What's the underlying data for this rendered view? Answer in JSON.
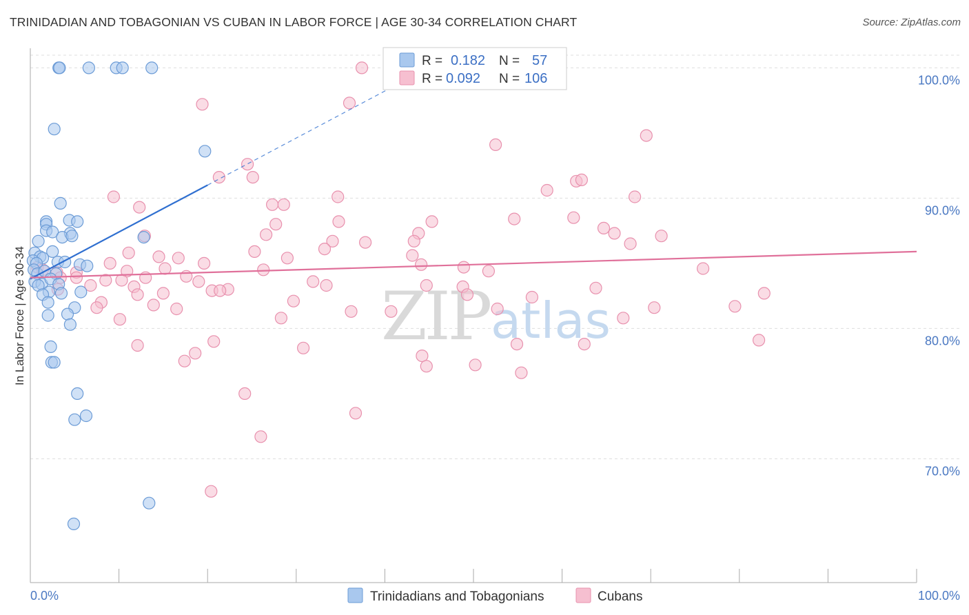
{
  "title": "TRINIDADIAN AND TOBAGONIAN VS CUBAN IN LABOR FORCE | AGE 30-34 CORRELATION CHART",
  "source": "Source: ZipAtlas.com",
  "watermark": {
    "zip": "ZIP",
    "atlas": "atlas"
  },
  "colors": {
    "blue_fill": "#a9c8ee",
    "blue_stroke": "#6b9bd6",
    "blue_line": "#2f6fd0",
    "pink_fill": "#f6bfd0",
    "pink_stroke": "#e890ad",
    "pink_line": "#e0709a",
    "grid": "#dddddd",
    "tick_text": "#4a78c2"
  },
  "legend": {
    "r_label": "R =",
    "n_label": "N =",
    "rows": [
      {
        "series": "blue",
        "r": "0.182",
        "n": "57"
      },
      {
        "series": "pink",
        "r": "0.092",
        "n": "106"
      }
    ]
  },
  "chart_data": {
    "type": "scatter",
    "title": "TRINIDADIAN AND TOBAGONIAN VS CUBAN IN LABOR FORCE | AGE 30-34 CORRELATION CHART",
    "xlabel": "",
    "ylabel": "In Labor Force | Age 30-34",
    "xlim": [
      0,
      100
    ],
    "ylim": [
      60.5,
      101.5
    ],
    "x_tick_labels": [
      "0.0%",
      "100.0%"
    ],
    "y_ticks": [
      {
        "value": 100,
        "label": "100.0%"
      },
      {
        "value": 90,
        "label": "90.0%"
      },
      {
        "value": 80,
        "label": "80.0%"
      },
      {
        "value": 70,
        "label": "70.0%"
      }
    ],
    "grid": true,
    "legend_position": "top-center",
    "series": [
      {
        "name": "Trinidadians and Tobagonians",
        "color": "blue",
        "trend": {
          "x": [
            0,
            20
          ],
          "y": [
            83.8,
            91.0
          ],
          "dashed_to": [
            43,
            99.3
          ]
        },
        "points": [
          [
            3.2,
            100.0
          ],
          [
            3.3,
            100.0
          ],
          [
            6.6,
            100.0
          ],
          [
            9.7,
            100.0
          ],
          [
            10.4,
            100.0
          ],
          [
            13.7,
            100.0
          ],
          [
            2.7,
            95.3
          ],
          [
            19.7,
            93.6
          ],
          [
            3.4,
            89.6
          ],
          [
            1.8,
            88.2
          ],
          [
            1.8,
            88.0
          ],
          [
            4.4,
            88.3
          ],
          [
            5.3,
            88.2
          ],
          [
            1.8,
            87.5
          ],
          [
            2.5,
            87.4
          ],
          [
            4.5,
            87.3
          ],
          [
            3.6,
            87.0
          ],
          [
            4.7,
            87.1
          ],
          [
            12.8,
            87.0
          ],
          [
            0.9,
            86.7
          ],
          [
            0.5,
            85.8
          ],
          [
            2.5,
            85.9
          ],
          [
            1.1,
            85.5
          ],
          [
            1.4,
            85.4
          ],
          [
            0.3,
            85.2
          ],
          [
            0.7,
            85.0
          ],
          [
            3.1,
            85.1
          ],
          [
            3.9,
            85.1
          ],
          [
            5.6,
            84.9
          ],
          [
            6.4,
            84.8
          ],
          [
            0.4,
            84.5
          ],
          [
            0.8,
            84.2
          ],
          [
            1.6,
            84.4
          ],
          [
            2.9,
            84.2
          ],
          [
            0.5,
            83.6
          ],
          [
            1.3,
            83.4
          ],
          [
            2.3,
            83.8
          ],
          [
            3.2,
            83.4
          ],
          [
            0.9,
            83.3
          ],
          [
            2.1,
            82.8
          ],
          [
            1.4,
            82.6
          ],
          [
            3.5,
            82.7
          ],
          [
            5.7,
            82.8
          ],
          [
            2.0,
            82.0
          ],
          [
            5.0,
            81.6
          ],
          [
            4.2,
            81.1
          ],
          [
            2.0,
            81.0
          ],
          [
            4.5,
            80.3
          ],
          [
            2.3,
            78.6
          ],
          [
            2.4,
            77.4
          ],
          [
            2.7,
            77.4
          ],
          [
            5.3,
            75.0
          ],
          [
            6.3,
            73.3
          ],
          [
            5.0,
            73.0
          ],
          [
            13.4,
            66.6
          ],
          [
            4.9,
            65.0
          ]
        ]
      },
      {
        "name": "Cubans",
        "color": "pink",
        "trend": {
          "x": [
            0,
            100
          ],
          "y": [
            83.9,
            85.9
          ]
        },
        "points": [
          [
            37.4,
            100.0
          ],
          [
            19.4,
            97.2
          ],
          [
            36.0,
            97.3
          ],
          [
            52.5,
            94.1
          ],
          [
            69.5,
            94.8
          ],
          [
            24.5,
            92.6
          ],
          [
            21.3,
            91.6
          ],
          [
            25.1,
            91.6
          ],
          [
            61.6,
            91.3
          ],
          [
            62.2,
            91.4
          ],
          [
            58.3,
            90.6
          ],
          [
            9.4,
            90.1
          ],
          [
            34.7,
            90.1
          ],
          [
            68.2,
            90.1
          ],
          [
            12.3,
            89.3
          ],
          [
            27.3,
            89.5
          ],
          [
            28.6,
            89.5
          ],
          [
            34.8,
            88.2
          ],
          [
            45.3,
            88.2
          ],
          [
            54.6,
            88.4
          ],
          [
            61.3,
            88.5
          ],
          [
            27.7,
            88.0
          ],
          [
            12.9,
            87.1
          ],
          [
            26.6,
            87.2
          ],
          [
            43.8,
            87.3
          ],
          [
            64.7,
            87.7
          ],
          [
            65.9,
            87.3
          ],
          [
            71.2,
            87.1
          ],
          [
            34.1,
            86.7
          ],
          [
            37.8,
            86.6
          ],
          [
            43.3,
            86.7
          ],
          [
            67.7,
            86.5
          ],
          [
            33.2,
            86.1
          ],
          [
            11.1,
            85.8
          ],
          [
            14.5,
            85.5
          ],
          [
            16.7,
            85.4
          ],
          [
            25.3,
            85.9
          ],
          [
            29.0,
            85.4
          ],
          [
            43.1,
            85.6
          ],
          [
            9.0,
            85.0
          ],
          [
            19.6,
            85.0
          ],
          [
            44.1,
            84.9
          ],
          [
            48.9,
            84.7
          ],
          [
            0.8,
            84.7
          ],
          [
            1.4,
            84.5
          ],
          [
            3.0,
            84.3
          ],
          [
            5.2,
            84.3
          ],
          [
            10.9,
            84.4
          ],
          [
            15.2,
            84.6
          ],
          [
            26.3,
            84.5
          ],
          [
            51.7,
            84.4
          ],
          [
            75.9,
            84.6
          ],
          [
            3.4,
            83.9
          ],
          [
            5.2,
            83.9
          ],
          [
            8.5,
            83.7
          ],
          [
            10.3,
            83.7
          ],
          [
            13.0,
            83.9
          ],
          [
            17.6,
            84.0
          ],
          [
            19.0,
            83.6
          ],
          [
            31.9,
            83.6
          ],
          [
            3.1,
            83.0
          ],
          [
            6.8,
            83.3
          ],
          [
            11.7,
            83.2
          ],
          [
            22.3,
            83.0
          ],
          [
            33.4,
            83.3
          ],
          [
            44.7,
            83.3
          ],
          [
            48.8,
            83.2
          ],
          [
            63.8,
            83.1
          ],
          [
            12.1,
            82.6
          ],
          [
            15.0,
            82.7
          ],
          [
            20.5,
            82.9
          ],
          [
            21.4,
            82.9
          ],
          [
            29.7,
            82.1
          ],
          [
            49.3,
            82.6
          ],
          [
            56.6,
            82.4
          ],
          [
            82.8,
            82.7
          ],
          [
            8.0,
            82.0
          ],
          [
            13.9,
            81.8
          ],
          [
            16.5,
            81.5
          ],
          [
            36.2,
            81.3
          ],
          [
            40.7,
            81.3
          ],
          [
            52.7,
            81.5
          ],
          [
            70.4,
            81.6
          ],
          [
            79.5,
            81.7
          ],
          [
            7.5,
            81.6
          ],
          [
            10.1,
            80.7
          ],
          [
            28.3,
            80.8
          ],
          [
            66.9,
            80.8
          ],
          [
            12.1,
            78.7
          ],
          [
            20.7,
            79.0
          ],
          [
            30.8,
            78.5
          ],
          [
            54.9,
            78.8
          ],
          [
            62.5,
            78.8
          ],
          [
            82.2,
            79.1
          ],
          [
            18.6,
            78.1
          ],
          [
            17.4,
            77.5
          ],
          [
            44.2,
            77.9
          ],
          [
            44.7,
            77.1
          ],
          [
            50.2,
            77.2
          ],
          [
            55.4,
            76.6
          ],
          [
            24.2,
            75.0
          ],
          [
            36.7,
            73.5
          ],
          [
            26.0,
            71.7
          ],
          [
            20.4,
            67.5
          ]
        ]
      }
    ]
  },
  "bottom_legend": [
    {
      "series": "blue",
      "label": "Trinidadians and Tobagonians"
    },
    {
      "series": "pink",
      "label": "Cubans"
    }
  ]
}
